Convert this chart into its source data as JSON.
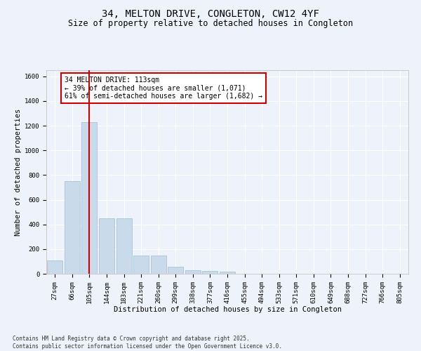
{
  "title": "34, MELTON DRIVE, CONGLETON, CW12 4YF",
  "subtitle": "Size of property relative to detached houses in Congleton",
  "xlabel": "Distribution of detached houses by size in Congleton",
  "ylabel": "Number of detached properties",
  "categories": [
    "27sqm",
    "66sqm",
    "105sqm",
    "144sqm",
    "183sqm",
    "221sqm",
    "260sqm",
    "299sqm",
    "338sqm",
    "377sqm",
    "416sqm",
    "455sqm",
    "494sqm",
    "533sqm",
    "571sqm",
    "610sqm",
    "649sqm",
    "688sqm",
    "727sqm",
    "766sqm",
    "805sqm"
  ],
  "values": [
    110,
    750,
    1230,
    450,
    450,
    150,
    150,
    55,
    30,
    20,
    15,
    0,
    0,
    0,
    0,
    0,
    0,
    0,
    0,
    0,
    0
  ],
  "bar_color": "#c9daea",
  "bar_edge_color": "#a0bcd0",
  "background_color": "#eef2fb",
  "grid_color": "#ffffff",
  "vline_x_index": 2,
  "vline_color": "#cc0000",
  "annotation_text": "34 MELTON DRIVE: 113sqm\n← 39% of detached houses are smaller (1,071)\n61% of semi-detached houses are larger (1,682) →",
  "annotation_box_color": "#cc0000",
  "ylim_max": 1650,
  "yticks": [
    0,
    200,
    400,
    600,
    800,
    1000,
    1200,
    1400,
    1600
  ],
  "footnote": "Contains HM Land Registry data © Crown copyright and database right 2025.\nContains public sector information licensed under the Open Government Licence v3.0.",
  "title_fontsize": 10,
  "subtitle_fontsize": 8.5,
  "axis_label_fontsize": 7.5,
  "tick_fontsize": 6.5,
  "annotation_fontsize": 7,
  "footnote_fontsize": 5.5
}
